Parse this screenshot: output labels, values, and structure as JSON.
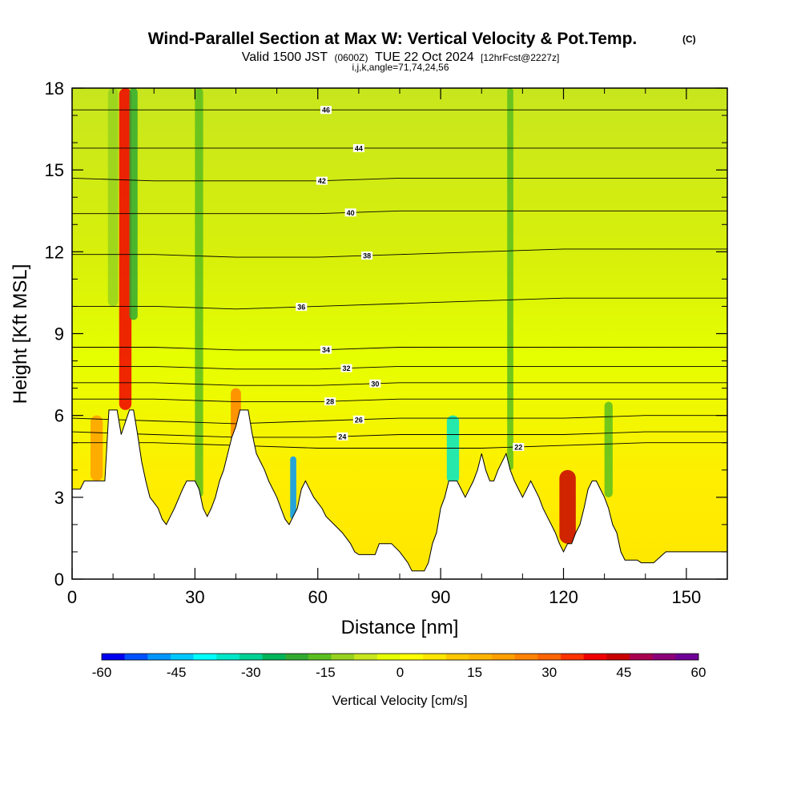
{
  "title": {
    "main": "Wind-Parallel Section at Max W: Vertical Velocity & Pot.Temp.",
    "main_tag": "(C)",
    "valid_a": "Valid 1500 JST",
    "valid_b": "(0600Z)",
    "valid_c": "TUE 22 Oct 2024",
    "valid_d": "[12hrFcst@2227z]",
    "indices": "i,j,k,angle=71,74,24,56"
  },
  "chart_data": {
    "type": "heatmap",
    "xlabel": "Distance [nm]",
    "ylabel": "Height [Kft MSL]",
    "xlim": [
      0,
      160
    ],
    "ylim": [
      0,
      18
    ],
    "x_ticks": [
      "0",
      "30",
      "60",
      "90",
      "120",
      "150"
    ],
    "y_ticks": [
      "0",
      "3",
      "6",
      "9",
      "12",
      "15",
      "18"
    ],
    "colorbar": {
      "label": "Vertical Velocity [cm/s]",
      "tick_labels": [
        "-60",
        "-45",
        "-30",
        "-15",
        "0",
        "15",
        "30",
        "45",
        "60"
      ],
      "colors": [
        "#0000f0",
        "#0050ff",
        "#0096ff",
        "#00c8ff",
        "#00ffff",
        "#00e6c8",
        "#00d296",
        "#00b45a",
        "#32aa32",
        "#5abe1e",
        "#96d21e",
        "#c8e61e",
        "#e6ff00",
        "#ffff00",
        "#ffe600",
        "#ffc800",
        "#ffb400",
        "#ffa000",
        "#ff8200",
        "#ff6400",
        "#ff3200",
        "#f00000",
        "#c80000",
        "#aa0050",
        "#8c0078",
        "#6e0096"
      ]
    },
    "terrain_height_kft": [
      [
        0,
        3.3
      ],
      [
        2,
        3.3
      ],
      [
        3,
        3.6
      ],
      [
        5,
        3.6
      ],
      [
        6,
        3.6
      ],
      [
        8,
        3.6
      ],
      [
        9,
        6.2
      ],
      [
        11,
        6.2
      ],
      [
        12,
        5.3
      ],
      [
        14,
        6.2
      ],
      [
        15,
        6.2
      ],
      [
        16,
        5.3
      ],
      [
        17,
        4.3
      ],
      [
        18,
        3.6
      ],
      [
        19,
        3.0
      ],
      [
        20,
        2.8
      ],
      [
        21,
        2.6
      ],
      [
        22,
        2.2
      ],
      [
        23,
        2.0
      ],
      [
        24,
        2.3
      ],
      [
        25,
        2.6
      ],
      [
        27,
        3.3
      ],
      [
        28,
        3.6
      ],
      [
        30,
        3.6
      ],
      [
        31,
        3.3
      ],
      [
        32,
        2.6
      ],
      [
        33,
        2.3
      ],
      [
        34,
        2.6
      ],
      [
        35,
        3.0
      ],
      [
        36,
        3.6
      ],
      [
        37,
        4.0
      ],
      [
        38,
        4.6
      ],
      [
        39,
        5.2
      ],
      [
        40,
        5.6
      ],
      [
        41,
        6.2
      ],
      [
        43,
        6.2
      ],
      [
        44,
        5.3
      ],
      [
        45,
        4.6
      ],
      [
        46,
        4.3
      ],
      [
        47,
        4.0
      ],
      [
        48,
        3.6
      ],
      [
        50,
        3.0
      ],
      [
        51,
        2.6
      ],
      [
        52,
        2.2
      ],
      [
        53,
        2.0
      ],
      [
        54,
        2.3
      ],
      [
        55,
        2.6
      ],
      [
        56,
        3.3
      ],
      [
        57,
        3.6
      ],
      [
        58,
        3.3
      ],
      [
        59,
        3.0
      ],
      [
        61,
        2.6
      ],
      [
        62,
        2.3
      ],
      [
        64,
        2.0
      ],
      [
        66,
        1.7
      ],
      [
        68,
        1.3
      ],
      [
        69,
        1.0
      ],
      [
        70,
        0.9
      ],
      [
        74,
        0.9
      ],
      [
        75,
        1.3
      ],
      [
        78,
        1.3
      ],
      [
        80,
        1.0
      ],
      [
        82,
        0.6
      ],
      [
        83,
        0.3
      ],
      [
        86,
        0.3
      ],
      [
        87,
        0.6
      ],
      [
        88,
        1.3
      ],
      [
        89,
        1.7
      ],
      [
        90,
        2.6
      ],
      [
        91,
        3.0
      ],
      [
        92,
        3.6
      ],
      [
        94,
        3.6
      ],
      [
        95,
        3.3
      ],
      [
        96,
        3.0
      ],
      [
        97,
        3.3
      ],
      [
        98,
        3.6
      ],
      [
        99,
        4.0
      ],
      [
        100,
        4.6
      ],
      [
        101,
        4.0
      ],
      [
        102,
        3.6
      ],
      [
        103,
        3.6
      ],
      [
        104,
        4.0
      ],
      [
        106,
        4.6
      ],
      [
        107,
        4.0
      ],
      [
        108,
        3.6
      ],
      [
        109,
        3.3
      ],
      [
        110,
        3.0
      ],
      [
        111,
        3.3
      ],
      [
        112,
        3.6
      ],
      [
        113,
        3.3
      ],
      [
        114,
        3.0
      ],
      [
        115,
        2.6
      ],
      [
        116,
        2.3
      ],
      [
        117,
        2.0
      ],
      [
        118,
        1.7
      ],
      [
        119,
        1.3
      ],
      [
        120,
        1.0
      ],
      [
        121,
        1.3
      ],
      [
        122,
        1.3
      ],
      [
        123,
        1.7
      ],
      [
        124,
        2.0
      ],
      [
        125,
        2.6
      ],
      [
        126,
        3.3
      ],
      [
        127,
        3.6
      ],
      [
        128,
        3.6
      ],
      [
        129,
        3.3
      ],
      [
        130,
        3.0
      ],
      [
        131,
        2.6
      ],
      [
        132,
        2.0
      ],
      [
        133,
        1.7
      ],
      [
        134,
        1.0
      ],
      [
        135,
        0.7
      ],
      [
        138,
        0.7
      ],
      [
        139,
        0.6
      ],
      [
        141,
        0.6
      ],
      [
        142,
        0.6
      ],
      [
        145,
        1.0
      ],
      [
        148,
        1.0
      ],
      [
        150,
        1.0
      ],
      [
        152,
        1.0
      ],
      [
        155,
        1.0
      ],
      [
        160,
        1.0
      ]
    ],
    "updraft_cores": [
      {
        "x": 13,
        "y_bottom": 6.2,
        "y_top": 18,
        "w_cms": 40,
        "width_nm": 3.0
      },
      {
        "x": 15,
        "y_bottom": 9.5,
        "y_top": 18,
        "w_cms": -20,
        "width_nm": 2.0
      },
      {
        "x": 10,
        "y_bottom": 10,
        "y_top": 18,
        "w_cms": -12,
        "width_nm": 2.5
      },
      {
        "x": 31,
        "y_bottom": 3.0,
        "y_top": 18,
        "w_cms": -18,
        "width_nm": 2.0
      },
      {
        "x": 54,
        "y_bottom": 2.2,
        "y_top": 4.5,
        "w_cms": -50,
        "width_nm": 1.5
      },
      {
        "x": 93,
        "y_bottom": 3.5,
        "y_top": 6.0,
        "w_cms": -35,
        "width_nm": 3.0
      },
      {
        "x": 107,
        "y_bottom": 4.0,
        "y_top": 18,
        "w_cms": -15,
        "width_nm": 1.5
      },
      {
        "x": 121,
        "y_bottom": 1.3,
        "y_top": 4.0,
        "w_cms": 45,
        "width_nm": 4.0
      },
      {
        "x": 131,
        "y_bottom": 3.0,
        "y_top": 6.5,
        "w_cms": -15,
        "width_nm": 2.0
      },
      {
        "x": 6,
        "y_bottom": 3.6,
        "y_top": 6.0,
        "w_cms": 22,
        "width_nm": 3.0
      },
      {
        "x": 40,
        "y_bottom": 3.5,
        "y_top": 7.0,
        "w_cms": 25,
        "width_nm": 2.5
      }
    ],
    "isentropes": [
      {
        "label": "22",
        "label_x": 109,
        "y": [
          5.0,
          5.0,
          4.9,
          4.8,
          4.8,
          4.8,
          4.9,
          5.0,
          5.0
        ]
      },
      {
        "label": "24",
        "label_x": 66,
        "y": [
          5.4,
          5.3,
          5.2,
          5.2,
          5.3,
          5.3,
          5.3,
          5.4,
          5.4
        ]
      },
      {
        "label": "26",
        "label_x": 70,
        "y": [
          5.9,
          5.8,
          5.7,
          5.8,
          5.9,
          5.9,
          5.9,
          6.0,
          6.0
        ]
      },
      {
        "label": "28",
        "label_x": 63,
        "y": [
          6.6,
          6.6,
          6.5,
          6.5,
          6.6,
          6.6,
          6.6,
          6.6,
          6.6
        ]
      },
      {
        "label": "30",
        "label_x": 74,
        "y": [
          7.2,
          7.2,
          7.1,
          7.1,
          7.2,
          7.2,
          7.2,
          7.2,
          7.2
        ]
      },
      {
        "label": "32",
        "label_x": 67,
        "y": [
          7.8,
          7.8,
          7.7,
          7.7,
          7.8,
          7.8,
          7.8,
          7.8,
          7.8
        ]
      },
      {
        "label": "34",
        "label_x": 62,
        "y": [
          8.5,
          8.5,
          8.4,
          8.4,
          8.5,
          8.5,
          8.5,
          8.5,
          8.5
        ]
      },
      {
        "label": "36",
        "label_x": 56,
        "y": [
          10.0,
          10.0,
          9.9,
          10.0,
          10.1,
          10.2,
          10.3,
          10.3,
          10.3
        ]
      },
      {
        "label": "38",
        "label_x": 72,
        "y": [
          11.9,
          11.9,
          11.8,
          11.8,
          11.9,
          12.0,
          12.1,
          12.1,
          12.1
        ]
      },
      {
        "label": "40",
        "label_x": 68,
        "y": [
          13.4,
          13.4,
          13.4,
          13.4,
          13.5,
          13.5,
          13.5,
          13.5,
          13.5
        ]
      },
      {
        "label": "42",
        "label_x": 61,
        "y": [
          14.7,
          14.6,
          14.6,
          14.6,
          14.7,
          14.7,
          14.7,
          14.7,
          14.7
        ]
      },
      {
        "label": "44",
        "label_x": 70,
        "y": [
          15.8,
          15.8,
          15.8,
          15.8,
          15.8,
          15.8,
          15.8,
          15.8,
          15.8
        ]
      },
      {
        "label": "46",
        "label_x": 62,
        "y": [
          17.2,
          17.2,
          17.2,
          17.2,
          17.2,
          17.2,
          17.2,
          17.2,
          17.2
        ]
      }
    ],
    "isentrope_x": [
      0,
      20,
      40,
      60,
      80,
      100,
      120,
      140,
      160
    ]
  }
}
